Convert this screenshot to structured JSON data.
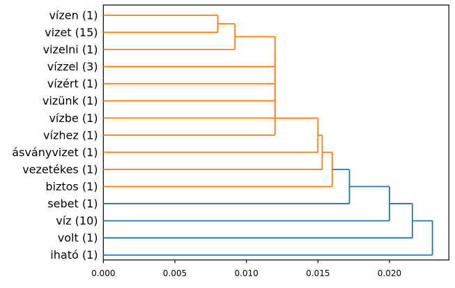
{
  "figure": {
    "background": "#ffffff",
    "frame_color": "#000000"
  },
  "chart_data": {
    "type": "dendrogram",
    "orientation": "left-to-right",
    "title": "",
    "xlabel": "",
    "ylabel": "",
    "grid": false,
    "legend": "none",
    "xlim": [
      0,
      0.02415
    ],
    "x_ticks": [
      {
        "value": 0.0,
        "label": "0.000"
      },
      {
        "value": 0.005,
        "label": "0.005"
      },
      {
        "value": 0.01,
        "label": "0.010"
      },
      {
        "value": 0.015,
        "label": "0.015"
      },
      {
        "value": 0.02,
        "label": "0.020"
      }
    ],
    "leaves": [
      "vízen (1)",
      "vizet (15)",
      "vizelni (1)",
      "vízzel (3)",
      "vízért (1)",
      "vizünk (1)",
      "vízbe (1)",
      "vízhez (1)",
      "ásványvizet (1)",
      "vezetékes (1)",
      "biztos (1)",
      "sebet (1)",
      "víz (10)",
      "volt (1)",
      "iható (1)"
    ],
    "merges": [
      {
        "start_leaf": 0,
        "leaf": 1,
        "leaf_label": "vizet (15)",
        "distance": 0.008,
        "color": "#ff7f0e"
      },
      {
        "leaf": 2,
        "leaf_label": "vizelni (1)",
        "distance": 0.0092,
        "color": "#ff7f0e"
      },
      {
        "leaf": 3,
        "leaf_label": "vízzel (3)",
        "distance": 0.012,
        "color": "#ff7f0e"
      },
      {
        "leaf": 4,
        "leaf_label": "vízért (1)",
        "distance": 0.012,
        "color": "#ff7f0e"
      },
      {
        "leaf": 5,
        "leaf_label": "vizünk (1)",
        "distance": 0.012,
        "color": "#ff7f0e"
      },
      {
        "leaf": 6,
        "leaf_label": "vízbe (1)",
        "distance": 0.012,
        "color": "#ff7f0e"
      },
      {
        "leaf": 7,
        "leaf_label": "vízhez (1)",
        "distance": 0.012,
        "color": "#ff7f0e"
      },
      {
        "leaf": 8,
        "leaf_label": "ásványvizet (1)",
        "distance": 0.015,
        "color": "#ff7f0e"
      },
      {
        "leaf": 9,
        "leaf_label": "vezetékes (1)",
        "distance": 0.0153,
        "color": "#ff7f0e"
      },
      {
        "leaf": 10,
        "leaf_label": "biztos (1)",
        "distance": 0.016,
        "color": "#ff7f0e"
      },
      {
        "leaf": 11,
        "leaf_label": "sebet (1)",
        "distance": 0.0172,
        "color": "#1f77b4"
      },
      {
        "leaf": 12,
        "leaf_label": "víz (10)",
        "distance": 0.02,
        "color": "#1f77b4"
      },
      {
        "leaf": 13,
        "leaf_label": "volt (1)",
        "distance": 0.0216,
        "color": "#1f77b4"
      },
      {
        "leaf": 14,
        "leaf_label": "iható (1)",
        "distance": 0.023,
        "color": "#1f77b4"
      }
    ],
    "colors": {
      "below_threshold_link": "#ff7f0e",
      "above_threshold_link": "#1f77b4"
    }
  }
}
